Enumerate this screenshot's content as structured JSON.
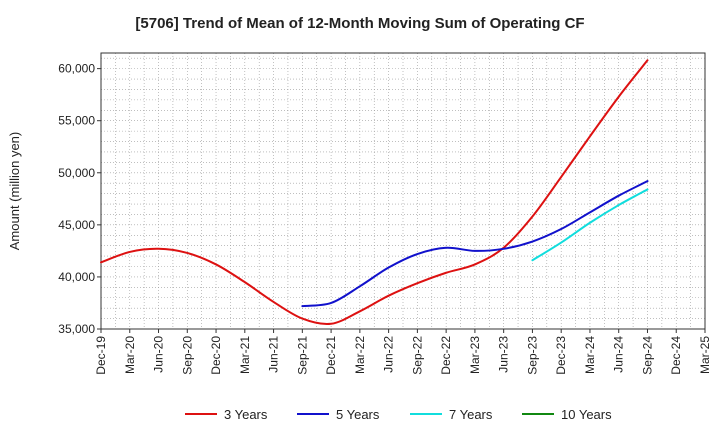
{
  "chart_data": {
    "type": "line",
    "title": "[5706]  Trend of Mean of 12-Month Moving Sum of Operating CF",
    "xlabel": "",
    "ylabel": "Amount (million yen)",
    "ylim": [
      35000,
      61500
    ],
    "yticks": [
      35000,
      40000,
      45000,
      50000,
      55000,
      60000
    ],
    "ytick_labels": [
      "35,000",
      "40,000",
      "45,000",
      "50,000",
      "55,000",
      "60,000"
    ],
    "categories": [
      "Dec-19",
      "Mar-20",
      "Jun-20",
      "Sep-20",
      "Dec-20",
      "Mar-21",
      "Jun-21",
      "Sep-21",
      "Dec-21",
      "Mar-22",
      "Jun-22",
      "Sep-22",
      "Dec-22",
      "Mar-23",
      "Jun-23",
      "Sep-23",
      "Dec-23",
      "Mar-24",
      "Jun-24",
      "Sep-24",
      "Dec-24",
      "Mar-25"
    ],
    "grid": true,
    "legend_position": "bottom",
    "series": [
      {
        "name": "3 Years",
        "color": "#dd1111",
        "x": [
          "Dec-19",
          "Mar-20",
          "Jun-20",
          "Sep-20",
          "Dec-20",
          "Mar-21",
          "Jun-21",
          "Sep-21",
          "Dec-21",
          "Mar-22",
          "Jun-22",
          "Sep-22",
          "Dec-22",
          "Mar-23",
          "Jun-23",
          "Sep-23",
          "Dec-23",
          "Mar-24",
          "Jun-24",
          "Sep-24"
        ],
        "values": [
          41400,
          42400,
          42700,
          42300,
          41200,
          39500,
          37600,
          36000,
          35500,
          36700,
          38200,
          39400,
          40400,
          41200,
          42800,
          45800,
          49600,
          53500,
          57300,
          60800
        ]
      },
      {
        "name": "5 Years",
        "color": "#1111cc",
        "x": [
          "Sep-21",
          "Dec-21",
          "Mar-22",
          "Jun-22",
          "Sep-22",
          "Dec-22",
          "Mar-23",
          "Jun-23",
          "Sep-23",
          "Dec-23",
          "Mar-24",
          "Jun-24",
          "Sep-24"
        ],
        "values": [
          37200,
          37500,
          39100,
          40900,
          42200,
          42800,
          42500,
          42700,
          43400,
          44600,
          46200,
          47800,
          49200
        ]
      },
      {
        "name": "7 Years",
        "color": "#11dddd",
        "x": [
          "Sep-23",
          "Dec-23",
          "Mar-24",
          "Jun-24",
          "Sep-24"
        ],
        "values": [
          41600,
          43300,
          45200,
          46900,
          48400
        ]
      },
      {
        "name": "10 Years",
        "color": "#118811",
        "x": [],
        "values": []
      }
    ]
  }
}
